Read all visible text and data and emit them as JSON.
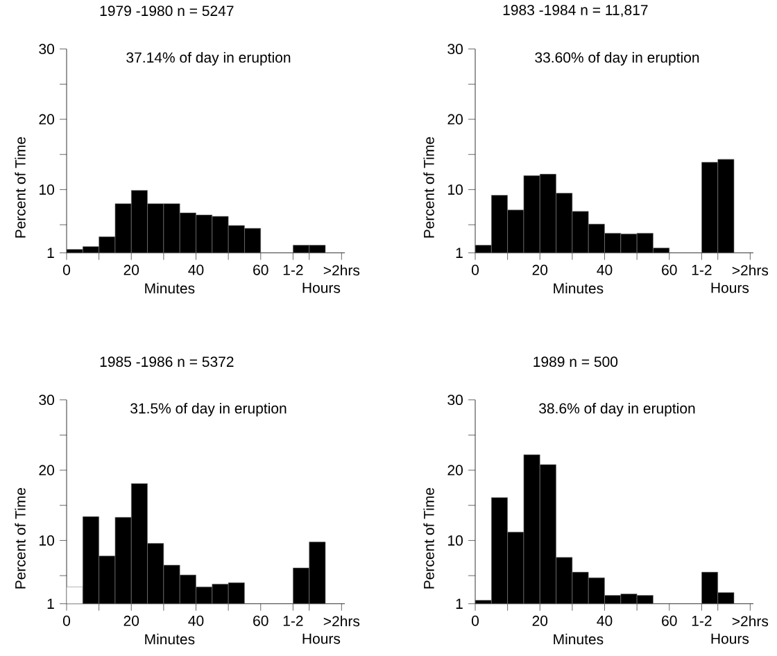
{
  "chart_data": [
    {
      "type": "histogram",
      "title": "1979 -1980 n = 5247",
      "subtitle": "37.14% of day in eruption",
      "xlabel": "Minutes",
      "ylabel": "Percent of Time",
      "annotations": [
        "Hours"
      ],
      "bins": [
        0,
        5,
        10,
        15,
        20,
        25,
        30,
        35,
        40,
        45,
        50,
        55,
        60,
        65,
        70,
        75,
        80
      ],
      "values": [
        1.5,
        1.9,
        3.3,
        8.0,
        9.9,
        8.0,
        8.0,
        6.7,
        6.4,
        6.2,
        4.9,
        4.5,
        null,
        null,
        2.1,
        2.1
      ],
      "color": "#000000",
      "xlim": [
        0,
        86
      ],
      "ylim": [
        1,
        30
      ],
      "xticks": [
        0,
        {
          "value": 10,
          "label": null
        },
        20,
        {
          "value": 30,
          "label": null
        },
        40,
        {
          "value": 50,
          "label": null
        },
        60,
        {
          "value": 70,
          "label": "1-2"
        },
        {
          "value": 75,
          "label": null
        },
        {
          "value": 85,
          "label": ">2hrs"
        }
      ],
      "yticks": [
        1,
        {
          "value": 5,
          "label": null
        },
        10,
        {
          "value": 15,
          "label": null
        },
        20,
        {
          "value": 25,
          "label": null
        },
        30
      ]
    },
    {
      "type": "histogram",
      "title": "1983 -1984 n = 11,817",
      "subtitle": "33.60% of day in eruption",
      "xlabel": "Minutes",
      "ylabel": "Percent of Time",
      "annotations": [
        "Hours"
      ],
      "bins": [
        0,
        5,
        10,
        15,
        20,
        25,
        30,
        35,
        40,
        45,
        50,
        55,
        60,
        65,
        70,
        75,
        80
      ],
      "values": [
        2.1,
        9.2,
        7.1,
        12.0,
        12.2,
        9.5,
        6.9,
        5.1,
        3.8,
        3.7,
        3.8,
        1.7,
        null,
        null,
        13.9,
        14.3
      ],
      "color": "#000000",
      "xlim": [
        0,
        86
      ],
      "ylim": [
        1,
        30
      ],
      "xticks": [
        0,
        {
          "value": 10,
          "label": null
        },
        20,
        {
          "value": 30,
          "label": null
        },
        40,
        {
          "value": 50,
          "label": null
        },
        60,
        {
          "value": 70,
          "label": "1-2"
        },
        {
          "value": 75,
          "label": null
        },
        {
          "value": 85,
          "label": ">2hrs"
        }
      ],
      "yticks": [
        1,
        {
          "value": 5,
          "label": null
        },
        10,
        {
          "value": 15,
          "label": null
        },
        20,
        {
          "value": 25,
          "label": null
        },
        30
      ]
    },
    {
      "type": "histogram",
      "title": "1985 -1986 n = 5372",
      "subtitle": "31.5% of day in eruption",
      "xlabel": "Minutes",
      "ylabel": "Percent of Time",
      "annotations": [
        "Hours"
      ],
      "bins": [
        0,
        5,
        10,
        15,
        20,
        25,
        30,
        35,
        40,
        45,
        50,
        55,
        60,
        65,
        70,
        75,
        80
      ],
      "values": [
        3.4,
        13.4,
        7.8,
        13.3,
        18.1,
        9.6,
        6.5,
        5.1,
        3.4,
        3.8,
        4.0,
        null,
        null,
        null,
        6.1,
        9.8
      ],
      "colors": [
        "#ffffff",
        "#000000",
        "#000000",
        "#000000",
        "#000000",
        "#000000",
        "#000000",
        "#000000",
        "#000000",
        "#000000",
        "#000000",
        "#000000",
        "#000000",
        "#000000",
        "#000000",
        "#000000"
      ],
      "xlim": [
        0,
        86
      ],
      "ylim": [
        1,
        30
      ],
      "xticks": [
        0,
        {
          "value": 10,
          "label": null
        },
        20,
        {
          "value": 30,
          "label": null
        },
        40,
        {
          "value": 50,
          "label": null
        },
        60,
        {
          "value": 70,
          "label": "1-2"
        },
        {
          "value": 75,
          "label": null
        },
        {
          "value": 85,
          "label": ">2hrs"
        }
      ],
      "yticks": [
        1,
        {
          "value": 5,
          "label": null
        },
        10,
        {
          "value": 15,
          "label": null
        },
        20,
        {
          "value": 25,
          "label": null
        },
        30
      ]
    },
    {
      "type": "histogram",
      "title": "1989 n = 500",
      "subtitle": "38.6% of day in eruption",
      "xlabel": "Minutes",
      "ylabel": "Percent of Time",
      "annotations": [
        "Hours"
      ],
      "bins": [
        0,
        5,
        10,
        15,
        20,
        25,
        30,
        35,
        40,
        45,
        50,
        55,
        60,
        65,
        70,
        75,
        80
      ],
      "values": [
        1.5,
        16.1,
        11.2,
        22.2,
        20.8,
        7.6,
        5.5,
        4.7,
        2.2,
        2.4,
        2.2,
        null,
        null,
        null,
        5.5,
        2.6
      ],
      "color": "#000000",
      "xlim": [
        0,
        86
      ],
      "ylim": [
        1,
        30
      ],
      "xticks": [
        0,
        {
          "value": 10,
          "label": null
        },
        20,
        {
          "value": 30,
          "label": null
        },
        40,
        {
          "value": 50,
          "label": null
        },
        60,
        {
          "value": 70,
          "label": "1-2"
        },
        {
          "value": 75,
          "label": null
        },
        {
          "value": 85,
          "label": ">2hrs"
        }
      ],
      "yticks": [
        1,
        {
          "value": 5,
          "label": null
        },
        10,
        {
          "value": 15,
          "label": null
        },
        20,
        {
          "value": 25,
          "label": null
        },
        30
      ]
    }
  ]
}
